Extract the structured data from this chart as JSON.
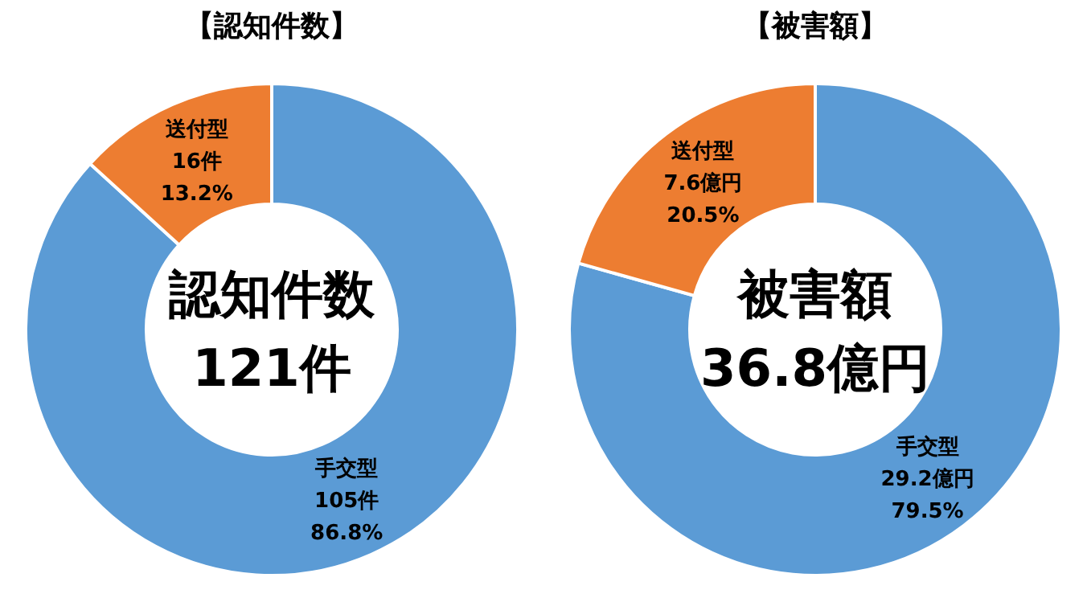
{
  "chart_data": [
    {
      "type": "donut",
      "title": "【認知件数】",
      "categories": [
        "手交型",
        "送付型"
      ],
      "values": [
        105,
        16
      ],
      "colors": [
        "#5b9bd5",
        "#ed7d31"
      ],
      "value_labels": [
        "105件\n86.8%",
        "16件\n13.2%"
      ],
      "annotations": [
        "認知件数",
        "121件"
      ]
    },
    {
      "type": "donut",
      "title": "【被害額】",
      "categories": [
        "手交型",
        "送付型"
      ],
      "values": [
        29.2,
        7.6
      ],
      "colors": [
        "#5b9bd5",
        "#ed7d31"
      ],
      "value_labels": [
        "29.2億円\n79.5%",
        "7.6億円\n20.5%"
      ],
      "annotations": [
        "被害額",
        "36.8億円"
      ]
    }
  ]
}
